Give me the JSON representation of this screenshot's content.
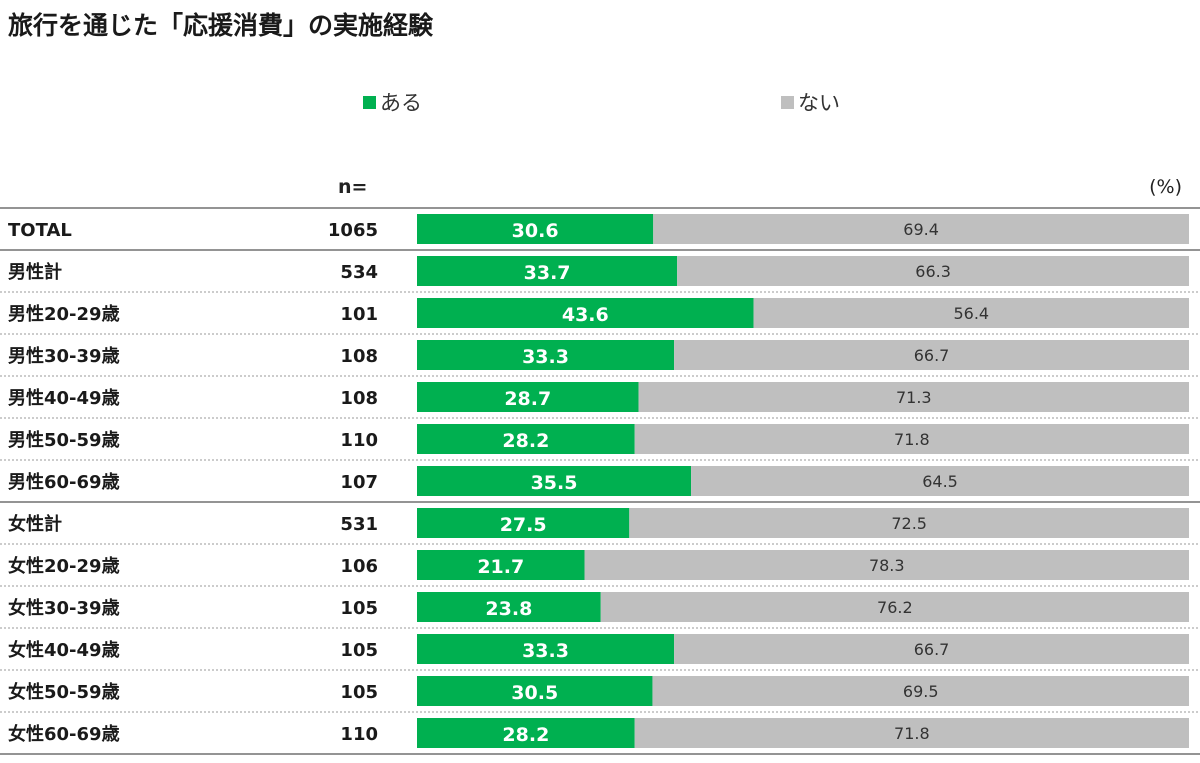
{
  "title": "旅行を通じた「応援消費」の実施経験",
  "n_header": "n=",
  "unit": "(%)",
  "colors": {
    "yes": "#00b050",
    "no": "#bfbfbf"
  },
  "chart_data": {
    "type": "bar",
    "orientation": "horizontal",
    "stacked": true,
    "percent": true,
    "legend_position": "top",
    "series": [
      {
        "name": "ある",
        "color": "#00b050"
      },
      {
        "name": "ない",
        "color": "#bfbfbf"
      }
    ],
    "rows": [
      {
        "label": "TOTAL",
        "n": "1065",
        "yes": 30.6,
        "no": 69.4
      },
      {
        "label": "男性計",
        "n": "534",
        "yes": 33.7,
        "no": 66.3
      },
      {
        "label": "男性20-29歳",
        "n": "101",
        "yes": 43.6,
        "no": 56.4
      },
      {
        "label": "男性30-39歳",
        "n": "108",
        "yes": 33.3,
        "no": 66.7
      },
      {
        "label": "男性40-49歳",
        "n": "108",
        "yes": 28.7,
        "no": 71.3
      },
      {
        "label": "男性50-59歳",
        "n": "110",
        "yes": 28.2,
        "no": 71.8
      },
      {
        "label": "男性60-69歳",
        "n": "107",
        "yes": 35.5,
        "no": 64.5
      },
      {
        "label": "女性計",
        "n": "531",
        "yes": 27.5,
        "no": 72.5
      },
      {
        "label": "女性20-29歳",
        "n": "106",
        "yes": 21.7,
        "no": 78.3
      },
      {
        "label": "女性30-39歳",
        "n": "105",
        "yes": 23.8,
        "no": 76.2
      },
      {
        "label": "女性40-49歳",
        "n": "105",
        "yes": 33.3,
        "no": 66.7
      },
      {
        "label": "女性50-59歳",
        "n": "105",
        "yes": 30.5,
        "no": 69.5
      },
      {
        "label": "女性60-69歳",
        "n": "110",
        "yes": 28.2,
        "no": 71.8
      }
    ]
  }
}
